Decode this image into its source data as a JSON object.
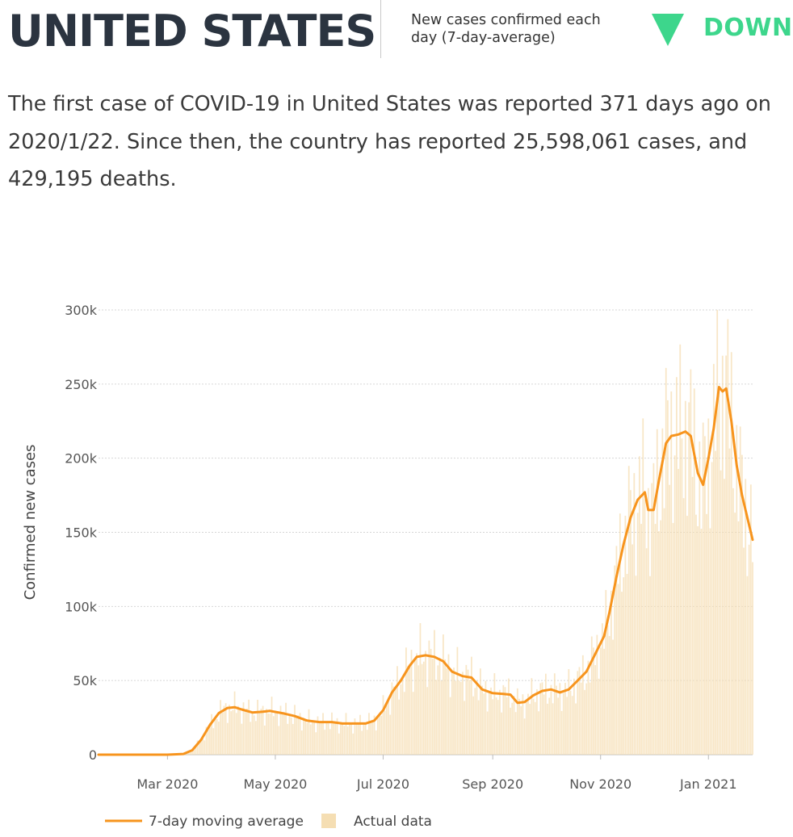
{
  "header": {
    "country": "UNITED STATES",
    "metric_label": "New cases confirmed each day (7-day-average)",
    "trend_label": "DOWN",
    "trend_icon": "triangle-down-icon",
    "trend_color": "#3dd68c"
  },
  "summary": {
    "text": "The first case of COVID-19 in United States was reported 371 days ago on 2020/1/22. Since then, the country has reported 25,598,061 cases, and 429,195 deaths."
  },
  "chart_data": {
    "type": "bar",
    "ylabel": "Confirmed new cases",
    "xlabel": "",
    "title": "",
    "ylim": [
      0,
      300000
    ],
    "yticks": [
      {
        "value": 0,
        "label": "0"
      },
      {
        "value": 50000,
        "label": "50k"
      },
      {
        "value": 100000,
        "label": "100k"
      },
      {
        "value": 150000,
        "label": "150k"
      },
      {
        "value": 200000,
        "label": "200k"
      },
      {
        "value": 250000,
        "label": "250k"
      },
      {
        "value": 300000,
        "label": "300k"
      }
    ],
    "xlim": [
      "2020-01-22",
      "2021-01-26"
    ],
    "xticks": [
      {
        "date": "2020-03-01",
        "label": "Mar 2020"
      },
      {
        "date": "2020-05-01",
        "label": "May 2020"
      },
      {
        "date": "2020-07-01",
        "label": "Jul 2020"
      },
      {
        "date": "2020-09-01",
        "label": "Sep 2020"
      },
      {
        "date": "2020-11-01",
        "label": "Nov 2020"
      },
      {
        "date": "2021-01-01",
        "label": "Jan 2021"
      }
    ],
    "grid": true,
    "legend_position": "bottom-left",
    "series": [
      {
        "name": "7-day moving average",
        "kind": "line",
        "color": "#f7941d",
        "points": [
          [
            "2020-01-22",
            0
          ],
          [
            "2020-02-15",
            0
          ],
          [
            "2020-03-01",
            0
          ],
          [
            "2020-03-10",
            500
          ],
          [
            "2020-03-15",
            3000
          ],
          [
            "2020-03-20",
            10000
          ],
          [
            "2020-03-25",
            20000
          ],
          [
            "2020-03-30",
            28000
          ],
          [
            "2020-04-04",
            31500
          ],
          [
            "2020-04-08",
            32000
          ],
          [
            "2020-04-12",
            30500
          ],
          [
            "2020-04-18",
            28500
          ],
          [
            "2020-04-24",
            29000
          ],
          [
            "2020-04-28",
            29500
          ],
          [
            "2020-05-05",
            28000
          ],
          [
            "2020-05-12",
            26000
          ],
          [
            "2020-05-19",
            23000
          ],
          [
            "2020-05-26",
            22000
          ],
          [
            "2020-06-02",
            22000
          ],
          [
            "2020-06-08",
            21000
          ],
          [
            "2020-06-15",
            21000
          ],
          [
            "2020-06-21",
            21000
          ],
          [
            "2020-06-26",
            23000
          ],
          [
            "2020-07-01",
            30000
          ],
          [
            "2020-07-06",
            42000
          ],
          [
            "2020-07-11",
            50000
          ],
          [
            "2020-07-16",
            60000
          ],
          [
            "2020-07-20",
            66000
          ],
          [
            "2020-07-25",
            67000
          ],
          [
            "2020-07-30",
            66000
          ],
          [
            "2020-08-04",
            63000
          ],
          [
            "2020-08-09",
            56000
          ],
          [
            "2020-08-15",
            53000
          ],
          [
            "2020-08-20",
            52000
          ],
          [
            "2020-08-26",
            44000
          ],
          [
            "2020-09-01",
            41500
          ],
          [
            "2020-09-07",
            41000
          ],
          [
            "2020-09-11",
            40500
          ],
          [
            "2020-09-15",
            35000
          ],
          [
            "2020-09-19",
            35500
          ],
          [
            "2020-09-24",
            40000
          ],
          [
            "2020-09-29",
            43000
          ],
          [
            "2020-10-04",
            44000
          ],
          [
            "2020-10-09",
            42000
          ],
          [
            "2020-10-14",
            44000
          ],
          [
            "2020-10-19",
            50000
          ],
          [
            "2020-10-24",
            56000
          ],
          [
            "2020-10-29",
            68000
          ],
          [
            "2020-11-03",
            80000
          ],
          [
            "2020-11-06",
            96000
          ],
          [
            "2020-11-10",
            120000
          ],
          [
            "2020-11-14",
            142000
          ],
          [
            "2020-11-18",
            160000
          ],
          [
            "2020-11-22",
            172000
          ],
          [
            "2020-11-26",
            177000
          ],
          [
            "2020-11-28",
            165000
          ],
          [
            "2020-12-01",
            165000
          ],
          [
            "2020-12-04",
            185000
          ],
          [
            "2020-12-08",
            210000
          ],
          [
            "2020-12-11",
            215000
          ],
          [
            "2020-12-15",
            216000
          ],
          [
            "2020-12-19",
            218000
          ],
          [
            "2020-12-22",
            215000
          ],
          [
            "2020-12-26",
            190000
          ],
          [
            "2020-12-29",
            182000
          ],
          [
            "2021-01-01",
            200000
          ],
          [
            "2021-01-04",
            220000
          ],
          [
            "2021-01-07",
            248000
          ],
          [
            "2021-01-09",
            245000
          ],
          [
            "2021-01-11",
            247000
          ],
          [
            "2021-01-14",
            225000
          ],
          [
            "2021-01-17",
            195000
          ],
          [
            "2021-01-20",
            175000
          ],
          [
            "2021-01-23",
            160000
          ],
          [
            "2021-01-26",
            145000
          ]
        ]
      },
      {
        "name": "Actual data",
        "kind": "bar",
        "color": "#f5deb3"
      }
    ]
  }
}
